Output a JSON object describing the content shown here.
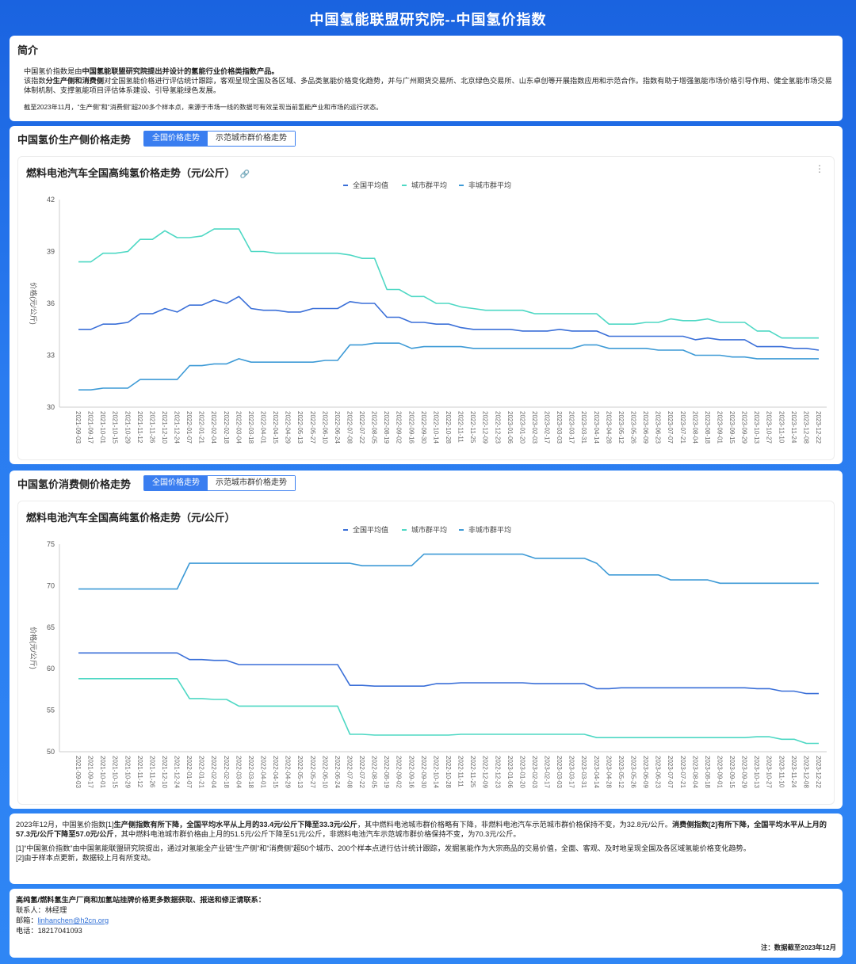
{
  "page_title": "中国氢能联盟研究院--中国氢价指数",
  "intro": {
    "heading": "简介",
    "line1_pre": "中国氢价指数是由",
    "line1_bold": "中国氢能联盟研究院提出并设计的氢能行业价格类指数产品。",
    "line2_pre": "该指数",
    "line2_bold": "分生产侧和消费侧",
    "line2_post": "对全国氢能价格进行评估统计跟踪，客观呈现全国及各区域、多品类氢能价格变化趋势，并与广州期货交易所、北京绿色交易所、山东卓创等开展指数应用和示范合作。指数有助于增强氢能市场价格引导作用、健全氢能市场交易体制机制、支撑氢能项目评估体系建设、引导氢能绿色发展。",
    "note": "截至2023年11月，“生产侧”和“消费侧”超200多个样本点，来源于市场一线的数据可有效呈现当前氢能产业和市场的运行状态。"
  },
  "production": {
    "section_title": "中国氢价生产侧价格走势",
    "tab_active": "全国价格走势",
    "tab_other": "示范城市群价格走势",
    "chart_title": "燃料电池汽车全国高纯氢价格走势（元/公斤）",
    "link_icon": "🔗",
    "more_icon": "⋮"
  },
  "consumption": {
    "section_title": "中国氢价消费侧价格走势",
    "tab_active": "全国价格走势",
    "tab_other": "示范城市群价格走势",
    "chart_title": "燃料电池汽车全国高纯氢价格走势（元/公斤）"
  },
  "summary": {
    "p1_a": "2023年12月，中国氢价指数[1]",
    "p1_b": "生产侧指数有所下降，全国平均水平从上月的33.4元/公斤下降至33.3元/公斤",
    "p1_c": "，其中燃料电池城市群价格略有下降，非燃料电池汽车示范城市群价格保持不变，为32.8元/公斤。",
    "p1_d": "消费侧指数[2]有所下降，全国平均水平从上月的57.3元/公斤下降至57.0元/公斤",
    "p1_e": "，其中燃料电池城市群价格由上月的51.5元/公斤下降至51元/公斤，非燃料电池汽车示范城市群价格保持不变，为70.3元/公斤。",
    "p2": "[1]“中国氢价指数”由中国氢能联盟研究院提出，通过对氢能全产业链“生产侧”和“消费侧”超50个城市、200个样本点进行估计统计跟踪，发掘氢能作为大宗商品的交易价值，全面、客观、及时地呈现全国及各区域氢能价格变化趋势。",
    "p3": "[2]由于样本点更新，数据较上月有所变动。"
  },
  "contact": {
    "heading": "高纯氢/燃料氢生产厂商和加氢站挂牌价格更多数据获取、报送和修正请联系：",
    "person_label": "联系人：",
    "person": "林经理",
    "email_label": "邮箱：",
    "email": "linhanchen@h2cn.org",
    "phone_label": "电话：",
    "phone": "18217041093",
    "date_note": "注：数据截至2023年12月"
  },
  "colors": {
    "national": "#3a6fd8",
    "city": "#4ed8c4",
    "noncity": "#3d9ad6"
  },
  "chart_data": [
    {
      "type": "line",
      "title": "燃料电池汽车全国高纯氢价格走势（元/公斤）",
      "ylabel": "价格(元/公斤)",
      "ylim": [
        30,
        42
      ],
      "yticks": [
        30,
        33,
        36,
        39,
        42
      ],
      "legend_position": "top-center",
      "grid": false,
      "x": [
        "2021-09-03",
        "2021-09-17",
        "2021-10-01",
        "2021-10-15",
        "2021-10-29",
        "2021-11-12",
        "2021-11-26",
        "2021-12-10",
        "2021-12-24",
        "2022-01-07",
        "2022-01-21",
        "2022-02-04",
        "2022-02-18",
        "2022-03-04",
        "2022-03-18",
        "2022-04-01",
        "2022-04-15",
        "2022-04-29",
        "2022-05-13",
        "2022-05-27",
        "2022-06-10",
        "2022-06-24",
        "2022-07-08",
        "2022-07-22",
        "2022-08-05",
        "2022-08-19",
        "2022-09-02",
        "2022-09-16",
        "2022-09-30",
        "2022-10-14",
        "2022-10-28",
        "2022-11-11",
        "2022-11-25",
        "2022-12-09",
        "2022-12-23",
        "2023-01-06",
        "2023-01-20",
        "2023-02-03",
        "2023-02-17",
        "2023-03-03",
        "2023-03-17",
        "2023-03-31",
        "2023-04-14",
        "2023-04-28",
        "2023-05-12",
        "2023-05-26",
        "2023-06-09",
        "2023-06-23",
        "2023-07-07",
        "2023-07-21",
        "2023-08-04",
        "2023-08-18",
        "2023-09-01",
        "2023-09-15",
        "2023-09-29",
        "2023-10-13",
        "2023-10-27",
        "2023-11-10",
        "2023-11-24",
        "2023-12-08",
        "2023-12-22"
      ],
      "series": [
        {
          "name": "全国平均值",
          "values": [
            34.5,
            34.5,
            34.8,
            34.8,
            34.9,
            35.4,
            35.4,
            35.7,
            35.5,
            35.9,
            35.9,
            36.2,
            36.0,
            36.4,
            35.7,
            35.6,
            35.6,
            35.5,
            35.5,
            35.7,
            35.7,
            35.7,
            36.1,
            36.0,
            36.0,
            35.2,
            35.2,
            34.9,
            34.9,
            34.8,
            34.8,
            34.6,
            34.5,
            34.5,
            34.5,
            34.5,
            34.4,
            34.4,
            34.4,
            34.5,
            34.4,
            34.4,
            34.4,
            34.1,
            34.1,
            34.1,
            34.1,
            34.1,
            34.1,
            34.1,
            33.9,
            34.0,
            33.9,
            33.9,
            33.9,
            33.5,
            33.5,
            33.5,
            33.4,
            33.4,
            33.3
          ]
        },
        {
          "name": "城市群平均",
          "values": [
            38.4,
            38.4,
            38.9,
            38.9,
            39.0,
            39.7,
            39.7,
            40.2,
            39.8,
            39.8,
            39.9,
            40.3,
            40.3,
            40.3,
            39.0,
            39.0,
            38.9,
            38.9,
            38.9,
            38.9,
            38.9,
            38.9,
            38.8,
            38.6,
            38.6,
            36.8,
            36.8,
            36.4,
            36.4,
            36.0,
            36.0,
            35.8,
            35.7,
            35.6,
            35.6,
            35.6,
            35.6,
            35.4,
            35.4,
            35.4,
            35.4,
            35.4,
            35.4,
            34.8,
            34.8,
            34.8,
            34.9,
            34.9,
            35.1,
            35.0,
            35.0,
            35.1,
            34.9,
            34.9,
            34.9,
            34.4,
            34.4,
            34.0,
            34.0,
            34.0,
            34.0
          ]
        },
        {
          "name": "非城市群平均",
          "values": [
            31.0,
            31.0,
            31.1,
            31.1,
            31.1,
            31.6,
            31.6,
            31.6,
            31.6,
            32.4,
            32.4,
            32.5,
            32.5,
            32.8,
            32.6,
            32.6,
            32.6,
            32.6,
            32.6,
            32.6,
            32.7,
            32.7,
            33.6,
            33.6,
            33.7,
            33.7,
            33.7,
            33.4,
            33.5,
            33.5,
            33.5,
            33.5,
            33.4,
            33.4,
            33.4,
            33.4,
            33.4,
            33.4,
            33.4,
            33.4,
            33.4,
            33.6,
            33.6,
            33.4,
            33.4,
            33.4,
            33.4,
            33.3,
            33.3,
            33.3,
            33.0,
            33.0,
            33.0,
            32.9,
            32.9,
            32.8,
            32.8,
            32.8,
            32.8,
            32.8,
            32.8
          ]
        }
      ]
    },
    {
      "type": "line",
      "title": "燃料电池汽车全国高纯氢价格走势（元/公斤）",
      "ylabel": "价格(元/公斤)",
      "ylim": [
        50,
        75
      ],
      "yticks": [
        50,
        55,
        60,
        65,
        70,
        75
      ],
      "legend_position": "top-center",
      "grid": false,
      "x": [
        "2021-09-03",
        "2021-09-17",
        "2021-10-01",
        "2021-10-15",
        "2021-10-29",
        "2021-11-12",
        "2021-11-26",
        "2021-12-10",
        "2021-12-24",
        "2022-01-07",
        "2022-01-21",
        "2022-02-04",
        "2022-02-18",
        "2022-03-04",
        "2022-03-18",
        "2022-04-01",
        "2022-04-15",
        "2022-04-29",
        "2022-05-13",
        "2022-05-27",
        "2022-06-10",
        "2022-06-24",
        "2022-07-08",
        "2022-07-22",
        "2022-08-05",
        "2022-08-19",
        "2022-09-02",
        "2022-09-16",
        "2022-09-30",
        "2022-10-14",
        "2022-10-28",
        "2022-11-11",
        "2022-11-25",
        "2022-12-09",
        "2022-12-23",
        "2023-01-06",
        "2023-01-20",
        "2023-02-03",
        "2023-02-17",
        "2023-03-03",
        "2023-03-17",
        "2023-03-31",
        "2023-04-14",
        "2023-04-28",
        "2023-05-12",
        "2023-05-26",
        "2023-06-09",
        "2023-06-23",
        "2023-07-07",
        "2023-07-21",
        "2023-08-04",
        "2023-08-18",
        "2023-09-01",
        "2023-09-15",
        "2023-09-29",
        "2023-10-13",
        "2023-10-27",
        "2023-11-10",
        "2023-11-24",
        "2023-12-08",
        "2023-12-22"
      ],
      "series": [
        {
          "name": "全国平均值",
          "values": [
            61.9,
            61.9,
            61.9,
            61.9,
            61.9,
            61.9,
            61.9,
            61.9,
            61.9,
            61.1,
            61.1,
            61.0,
            61.0,
            60.5,
            60.5,
            60.5,
            60.5,
            60.5,
            60.5,
            60.5,
            60.5,
            60.5,
            58.0,
            58.0,
            57.9,
            57.9,
            57.9,
            57.9,
            57.9,
            58.2,
            58.2,
            58.3,
            58.3,
            58.3,
            58.3,
            58.3,
            58.3,
            58.2,
            58.2,
            58.2,
            58.2,
            58.2,
            57.6,
            57.6,
            57.7,
            57.7,
            57.7,
            57.7,
            57.7,
            57.7,
            57.7,
            57.7,
            57.7,
            57.7,
            57.7,
            57.6,
            57.6,
            57.3,
            57.3,
            57.0,
            57.0
          ]
        },
        {
          "name": "城市群平均",
          "values": [
            58.8,
            58.8,
            58.8,
            58.8,
            58.8,
            58.8,
            58.8,
            58.8,
            58.8,
            56.4,
            56.4,
            56.3,
            56.3,
            55.5,
            55.5,
            55.5,
            55.5,
            55.5,
            55.5,
            55.5,
            55.5,
            55.5,
            52.1,
            52.1,
            52.0,
            52.0,
            52.0,
            52.0,
            52.0,
            52.0,
            52.0,
            52.1,
            52.1,
            52.1,
            52.1,
            52.1,
            52.1,
            52.1,
            52.1,
            52.1,
            52.1,
            52.1,
            51.7,
            51.7,
            51.7,
            51.7,
            51.7,
            51.7,
            51.7,
            51.7,
            51.7,
            51.7,
            51.7,
            51.7,
            51.7,
            51.8,
            51.8,
            51.5,
            51.5,
            51.0,
            51.0
          ]
        },
        {
          "name": "非城市群平均",
          "values": [
            69.6,
            69.6,
            69.6,
            69.6,
            69.6,
            69.6,
            69.6,
            69.6,
            69.6,
            72.7,
            72.7,
            72.7,
            72.7,
            72.7,
            72.7,
            72.7,
            72.7,
            72.7,
            72.7,
            72.7,
            72.7,
            72.7,
            72.7,
            72.4,
            72.4,
            72.4,
            72.4,
            72.4,
            73.8,
            73.8,
            73.8,
            73.8,
            73.8,
            73.8,
            73.8,
            73.8,
            73.8,
            73.3,
            73.3,
            73.3,
            73.3,
            73.3,
            72.7,
            71.3,
            71.3,
            71.3,
            71.3,
            71.3,
            70.7,
            70.7,
            70.7,
            70.7,
            70.3,
            70.3,
            70.3,
            70.3,
            70.3,
            70.3,
            70.3,
            70.3,
            70.3
          ]
        }
      ]
    }
  ]
}
